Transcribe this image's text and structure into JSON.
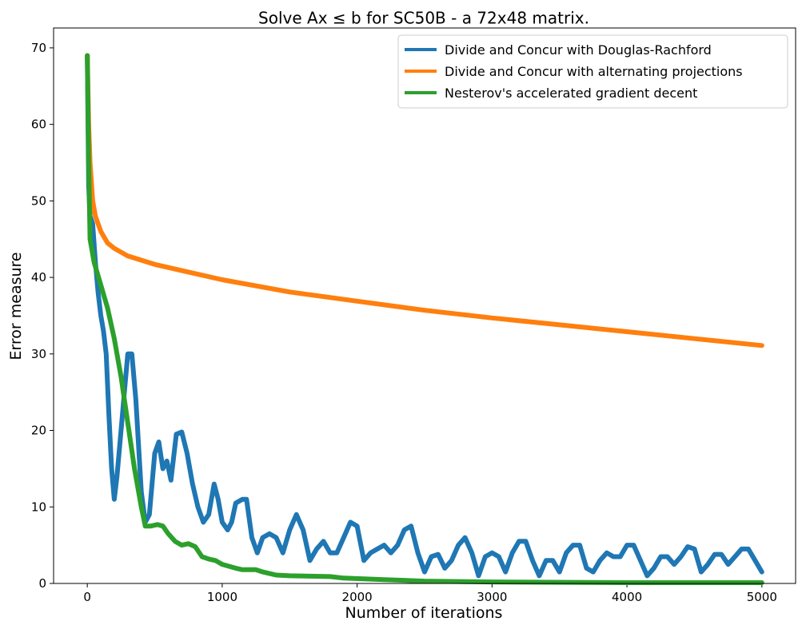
{
  "chart_data": {
    "type": "line",
    "title": "Solve Ax ≤ b for SC50B - a 72x48 matrix.",
    "x_label": "Number of iterations",
    "y_label": "Error measure",
    "xlim": [
      -250,
      5250
    ],
    "ylim": [
      0,
      72.6
    ],
    "xticks": [
      0,
      1000,
      2000,
      3000,
      4000,
      5000
    ],
    "yticks": [
      0,
      10,
      20,
      30,
      40,
      50,
      60,
      70
    ],
    "legend": "upper right",
    "series": [
      {
        "name": "Divide and Concur with Douglas-Rachford",
        "color": "#1f77b4",
        "x": [
          0,
          10,
          20,
          40,
          60,
          80,
          100,
          120,
          140,
          160,
          180,
          200,
          220,
          250,
          280,
          300,
          330,
          360,
          400,
          430,
          460,
          500,
          530,
          560,
          590,
          620,
          660,
          700,
          740,
          780,
          820,
          860,
          900,
          940,
          970,
          1000,
          1040,
          1070,
          1100,
          1150,
          1180,
          1220,
          1260,
          1300,
          1350,
          1400,
          1450,
          1500,
          1550,
          1600,
          1650,
          1700,
          1750,
          1800,
          1850,
          1900,
          1950,
          2000,
          2050,
          2100,
          2150,
          2200,
          2250,
          2300,
          2350,
          2400,
          2450,
          2500,
          2550,
          2600,
          2650,
          2700,
          2750,
          2800,
          2850,
          2900,
          2950,
          3000,
          3050,
          3100,
          3150,
          3200,
          3250,
          3300,
          3350,
          3400,
          3450,
          3500,
          3550,
          3600,
          3650,
          3700,
          3750,
          3800,
          3850,
          3900,
          3950,
          4000,
          4050,
          4100,
          4150,
          4200,
          4250,
          4300,
          4350,
          4400,
          4450,
          4500,
          4550,
          4600,
          4650,
          4700,
          4750,
          4800,
          4850,
          4900,
          4950,
          5000
        ],
        "values": [
          69,
          52,
          48,
          47,
          42,
          38,
          35,
          33,
          30,
          22,
          15,
          11,
          14,
          20,
          26,
          30,
          30,
          24,
          12,
          8,
          9,
          17,
          18.5,
          15,
          16,
          13.5,
          19.5,
          19.8,
          17,
          13,
          10,
          8,
          9,
          13,
          11,
          8,
          7,
          8,
          10.5,
          11,
          11,
          6,
          4,
          6,
          6.5,
          6,
          4,
          7,
          9,
          7,
          3,
          4.5,
          5.5,
          4,
          4,
          6,
          8,
          7.5,
          3,
          4,
          4.5,
          5,
          4,
          5,
          7,
          7.5,
          4,
          1.5,
          3.5,
          3.8,
          2,
          3,
          5,
          6,
          4,
          1,
          3.5,
          4,
          3.5,
          1.5,
          4,
          5.5,
          5.5,
          3,
          1,
          3,
          3,
          1.5,
          4,
          5,
          5,
          2,
          1.5,
          3,
          4,
          3.5,
          3.5,
          5,
          5,
          3,
          1,
          2,
          3.5,
          3.5,
          2.5,
          3.5,
          4.8,
          4.5,
          1.5,
          2.5,
          3.8,
          3.8,
          2.5,
          3.5,
          4.5,
          4.5,
          3,
          1.5
        ]
      },
      {
        "name": "Divide and Concur with alternating projections",
        "color": "#ff7f0e",
        "x": [
          0,
          10,
          20,
          40,
          60,
          100,
          150,
          200,
          300,
          500,
          750,
          1000,
          1500,
          2000,
          2500,
          3000,
          3500,
          4000,
          4500,
          5000
        ],
        "values": [
          69,
          60,
          55,
          50,
          48,
          46,
          44.5,
          43.8,
          42.8,
          41.7,
          40.7,
          39.7,
          38.1,
          36.9,
          35.7,
          34.7,
          33.8,
          32.9,
          32,
          31.1
        ]
      },
      {
        "name": "Nesterov's accelerated gradient decent",
        "color": "#2ca02c",
        "x": [
          0,
          10,
          20,
          50,
          100,
          150,
          200,
          250,
          300,
          350,
          400,
          430,
          470,
          520,
          560,
          600,
          650,
          700,
          750,
          800,
          850,
          900,
          950,
          1000,
          1100,
          1150,
          1200,
          1250,
          1300,
          1400,
          1500,
          1800,
          1900,
          2200,
          2500,
          3000,
          4000,
          5000
        ],
        "values": [
          69,
          55,
          45,
          42,
          39,
          36,
          32,
          27,
          21,
          15,
          10,
          7.5,
          7.5,
          7.7,
          7.5,
          6.5,
          5.5,
          5,
          5.2,
          4.8,
          3.5,
          3.2,
          3,
          2.5,
          2,
          1.8,
          1.8,
          1.8,
          1.5,
          1.1,
          1,
          0.9,
          0.7,
          0.5,
          0.3,
          0.2,
          0.1,
          0.1
        ]
      }
    ]
  }
}
